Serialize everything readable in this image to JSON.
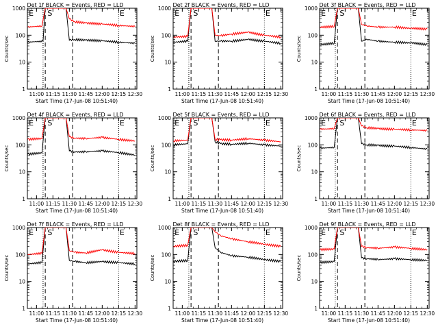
{
  "figure": {
    "title_suffix": "BLACK = Events, RED = LLD",
    "xlabel": "Start Time (17-Jun-08 10:51:40)",
    "ylabel": "Counts/sec",
    "x_ticks": [
      "11:00",
      "11:15",
      "11:30",
      "11:45",
      "12:00",
      "12:15",
      "12:30"
    ],
    "y_ticks": [
      "1",
      "10",
      "100",
      "1000"
    ],
    "markers": {
      "start": "E",
      "saa": "S",
      "end": "E"
    },
    "colors": {
      "events": "#000000",
      "lld": "#ff0000",
      "axes": "#000000"
    }
  },
  "chart_data": [
    {
      "type": "line",
      "title": "Det 1f BLACK = Events, RED = LLD",
      "xlabel": "Start Time (17-Jun-08 10:51:40)",
      "ylabel": "Counts/sec",
      "yscale": "log",
      "ylim": [
        1,
        1000
      ],
      "x_range": [
        "10:51:40",
        "12:31:40"
      ],
      "x_ticks": [
        "11:00",
        "11:15",
        "11:30",
        "11:45",
        "12:00",
        "12:15",
        "12:30"
      ],
      "dotted_lines": [
        "11:06",
        "12:15"
      ],
      "dashed_lines": [
        "11:08",
        "11:33"
      ],
      "labels": [
        {
          "text": "E",
          "x": "10:53"
        },
        {
          "text": "S",
          "x": "11:10"
        },
        {
          "text": "E",
          "x": "12:16"
        }
      ],
      "series": [
        {
          "name": "Events",
          "x": [
            "10:52",
            "11:06",
            "11:08",
            "11:15",
            "11:27",
            "11:30",
            "11:35",
            "11:45",
            "12:00",
            "12:15",
            "12:30"
          ],
          "y": [
            55,
            60,
            1000,
            1000,
            1000,
            65,
            70,
            65,
            62,
            55,
            50
          ]
        },
        {
          "name": "LLD",
          "x": [
            "10:52",
            "11:05",
            "11:08",
            "11:15",
            "11:27",
            "11:30",
            "11:35",
            "11:45",
            "12:00",
            "12:15",
            "12:30"
          ],
          "y": [
            200,
            220,
            1000,
            1000,
            1000,
            400,
            320,
            280,
            260,
            230,
            210
          ]
        }
      ]
    },
    {
      "type": "line",
      "title": "Det 2f BLACK = Events, RED = LLD",
      "xlabel": "Start Time (17-Jun-08 10:51:40)",
      "ylabel": "Counts/sec",
      "yscale": "log",
      "ylim": [
        1,
        1000
      ],
      "x_range": [
        "10:51:40",
        "12:31:40"
      ],
      "x_ticks": [
        "11:00",
        "11:15",
        "11:30",
        "11:45",
        "12:00",
        "12:15",
        "12:30"
      ],
      "dotted_lines": [
        "11:06",
        "12:15"
      ],
      "dashed_lines": [
        "11:08",
        "11:33"
      ],
      "labels": [
        {
          "text": "E",
          "x": "10:53"
        },
        {
          "text": "S",
          "x": "11:10"
        },
        {
          "text": "E",
          "x": "12:16"
        }
      ],
      "series": [
        {
          "name": "Events",
          "x": [
            "10:52",
            "11:05",
            "11:08",
            "11:15",
            "11:27",
            "11:30",
            "11:35",
            "11:45",
            "12:00",
            "12:15",
            "12:30"
          ],
          "y": [
            55,
            60,
            1000,
            1000,
            1000,
            60,
            60,
            60,
            70,
            60,
            50
          ]
        },
        {
          "name": "LLD",
          "x": [
            "10:52",
            "11:05",
            "11:08",
            "11:15",
            "11:27",
            "11:30",
            "11:35",
            "11:45",
            "12:00",
            "12:15",
            "12:30"
          ],
          "y": [
            85,
            90,
            1000,
            1000,
            1000,
            100,
            95,
            110,
            130,
            100,
            85
          ]
        }
      ]
    },
    {
      "type": "line",
      "title": "Det 3f BLACK = Events, RED = LLD",
      "xlabel": "Start Time (17-Jun-08 10:51:40)",
      "ylabel": "Counts/sec",
      "yscale": "log",
      "ylim": [
        1,
        1000
      ],
      "x_range": [
        "10:51:40",
        "12:31:40"
      ],
      "x_ticks": [
        "11:00",
        "11:15",
        "11:30",
        "11:45",
        "12:00",
        "12:15",
        "12:30"
      ],
      "dotted_lines": [
        "11:06",
        "12:15"
      ],
      "dashed_lines": [
        "11:08",
        "11:33"
      ],
      "labels": [
        {
          "text": "E",
          "x": "10:53"
        },
        {
          "text": "S",
          "x": "11:10"
        },
        {
          "text": "E",
          "x": "12:16"
        }
      ],
      "series": [
        {
          "name": "Events",
          "x": [
            "10:52",
            "11:05",
            "11:08",
            "11:15",
            "11:27",
            "11:30",
            "11:35",
            "11:45",
            "12:00",
            "12:15",
            "12:30"
          ],
          "y": [
            45,
            50,
            1000,
            1000,
            1000,
            60,
            70,
            60,
            55,
            52,
            45
          ]
        },
        {
          "name": "LLD",
          "x": [
            "10:52",
            "11:05",
            "11:08",
            "11:15",
            "11:27",
            "11:30",
            "11:35",
            "11:45",
            "12:00",
            "12:15",
            "12:30"
          ],
          "y": [
            200,
            210,
            1000,
            1000,
            1000,
            250,
            220,
            200,
            200,
            180,
            170
          ]
        }
      ]
    },
    {
      "type": "line",
      "title": "Det 4f BLACK = Events, RED = LLD",
      "xlabel": "Start Time (17-Jun-08 10:51:40)",
      "ylabel": "Counts/sec",
      "yscale": "log",
      "ylim": [
        1,
        1000
      ],
      "x_range": [
        "10:51:40",
        "12:31:40"
      ],
      "x_ticks": [
        "11:00",
        "11:15",
        "11:30",
        "11:45",
        "12:00",
        "12:15",
        "12:30"
      ],
      "dotted_lines": [
        "11:06",
        "12:15"
      ],
      "dashed_lines": [
        "11:08",
        "11:33"
      ],
      "labels": [
        {
          "text": "E",
          "x": "10:53"
        },
        {
          "text": "S",
          "x": "11:10"
        },
        {
          "text": "E",
          "x": "12:16"
        }
      ],
      "series": [
        {
          "name": "Events",
          "x": [
            "10:52",
            "11:05",
            "11:08",
            "11:15",
            "11:27",
            "11:30",
            "11:35",
            "11:45",
            "12:00",
            "12:15",
            "12:30"
          ],
          "y": [
            45,
            50,
            1000,
            1000,
            1000,
            60,
            55,
            55,
            60,
            52,
            42
          ]
        },
        {
          "name": "LLD",
          "x": [
            "10:52",
            "11:05",
            "11:08",
            "11:15",
            "11:27",
            "11:30",
            "11:35",
            "11:45",
            "12:00",
            "12:15",
            "12:30"
          ],
          "y": [
            160,
            170,
            1000,
            1000,
            1000,
            200,
            180,
            170,
            190,
            160,
            140
          ]
        }
      ]
    },
    {
      "type": "line",
      "title": "Det 5f BLACK = Events, RED = LLD",
      "xlabel": "Start Time (17-Jun-08 10:51:40)",
      "ylabel": "Counts/sec",
      "yscale": "log",
      "ylim": [
        1,
        1000
      ],
      "x_range": [
        "10:51:40",
        "12:31:40"
      ],
      "x_ticks": [
        "11:00",
        "11:15",
        "11:30",
        "11:45",
        "12:00",
        "12:15",
        "12:30"
      ],
      "dotted_lines": [
        "11:06",
        "12:15"
      ],
      "dashed_lines": [
        "11:08",
        "11:33"
      ],
      "labels": [
        {
          "text": "E",
          "x": "10:53"
        },
        {
          "text": "S",
          "x": "11:10"
        },
        {
          "text": "E",
          "x": "12:16"
        }
      ],
      "series": [
        {
          "name": "Events",
          "x": [
            "10:52",
            "11:05",
            "11:08",
            "11:15",
            "11:27",
            "11:30",
            "11:35",
            "11:45",
            "12:00",
            "12:15",
            "12:30"
          ],
          "y": [
            100,
            110,
            1000,
            1000,
            1000,
            130,
            110,
            105,
            115,
            100,
            90
          ]
        },
        {
          "name": "LLD",
          "x": [
            "10:52",
            "11:05",
            "11:08",
            "11:15",
            "11:27",
            "11:30",
            "11:35",
            "11:45",
            "12:00",
            "12:15",
            "12:30"
          ],
          "y": [
            140,
            150,
            1000,
            1000,
            1000,
            160,
            155,
            150,
            170,
            150,
            130
          ]
        }
      ]
    },
    {
      "type": "line",
      "title": "Det 6f BLACK = Events, RED = LLD",
      "xlabel": "Start Time (17-Jun-08 10:51:40)",
      "ylabel": "Counts/sec",
      "yscale": "log",
      "ylim": [
        1,
        1000
      ],
      "x_range": [
        "10:51:40",
        "12:31:40"
      ],
      "x_ticks": [
        "11:00",
        "11:15",
        "11:30",
        "11:45",
        "12:00",
        "12:15",
        "12:30"
      ],
      "dotted_lines": [
        "11:06",
        "12:15"
      ],
      "dashed_lines": [
        "11:08",
        "11:33"
      ],
      "labels": [
        {
          "text": "E",
          "x": "10:53"
        },
        {
          "text": "S",
          "x": "11:10"
        },
        {
          "text": "E",
          "x": "12:16"
        }
      ],
      "series": [
        {
          "name": "Events",
          "x": [
            "10:52",
            "11:05",
            "11:08",
            "11:15",
            "11:27",
            "11:30",
            "11:35",
            "11:45",
            "12:00",
            "12:15",
            "12:30"
          ],
          "y": [
            75,
            80,
            1000,
            1000,
            1000,
            110,
            100,
            95,
            90,
            80,
            70
          ]
        },
        {
          "name": "LLD",
          "x": [
            "10:52",
            "11:05",
            "11:08",
            "11:15",
            "11:27",
            "11:30",
            "11:35",
            "11:45",
            "12:00",
            "12:15",
            "12:30"
          ],
          "y": [
            380,
            400,
            1000,
            1000,
            1000,
            500,
            430,
            400,
            380,
            360,
            340
          ]
        }
      ]
    },
    {
      "type": "line",
      "title": "Det 7f BLACK = Events, RED = LLD",
      "xlabel": "Start Time (17-Jun-08 10:51:40)",
      "ylabel": "Counts/sec",
      "yscale": "log",
      "ylim": [
        1,
        1000
      ],
      "x_range": [
        "10:51:40",
        "12:31:40"
      ],
      "x_ticks": [
        "11:00",
        "11:15",
        "11:30",
        "11:45",
        "12:00",
        "12:15",
        "12:30"
      ],
      "dotted_lines": [
        "11:06",
        "12:15"
      ],
      "dashed_lines": [
        "11:08",
        "11:33"
      ],
      "labels": [
        {
          "text": "E",
          "x": "10:53"
        },
        {
          "text": "S",
          "x": "11:10"
        },
        {
          "text": "E",
          "x": "12:16"
        }
      ],
      "series": [
        {
          "name": "Events",
          "x": [
            "10:52",
            "11:05",
            "11:08",
            "11:15",
            "11:27",
            "11:30",
            "11:35",
            "11:45",
            "12:00",
            "12:15",
            "12:30"
          ],
          "y": [
            45,
            50,
            1000,
            1000,
            1000,
            60,
            55,
            50,
            55,
            50,
            45
          ]
        },
        {
          "name": "LLD",
          "x": [
            "10:52",
            "11:05",
            "11:08",
            "11:15",
            "11:27",
            "11:30",
            "11:35",
            "11:45",
            "12:00",
            "12:15",
            "12:30"
          ],
          "y": [
            100,
            110,
            1000,
            1000,
            1000,
            140,
            120,
            115,
            150,
            120,
            110
          ]
        }
      ]
    },
    {
      "type": "line",
      "title": "Det 8f BLACK = Events, RED = LLD",
      "xlabel": "Start Time (17-Jun-08 10:51:40)",
      "ylabel": "Counts/sec",
      "yscale": "log",
      "ylim": [
        1,
        1000
      ],
      "x_range": [
        "10:51:40",
        "12:31:40"
      ],
      "x_ticks": [
        "11:00",
        "11:15",
        "11:30",
        "11:45",
        "12:00",
        "12:15",
        "12:30"
      ],
      "dotted_lines": [
        "11:06",
        "12:15"
      ],
      "dashed_lines": [
        "11:08",
        "11:33"
      ],
      "labels": [
        {
          "text": "E",
          "x": "10:53"
        },
        {
          "text": "S",
          "x": "11:10"
        },
        {
          "text": "E",
          "x": "12:16"
        }
      ],
      "series": [
        {
          "name": "Events",
          "x": [
            "10:52",
            "11:05",
            "11:08",
            "11:15",
            "11:27",
            "11:30",
            "11:35",
            "11:45",
            "12:00",
            "12:15",
            "12:30"
          ],
          "y": [
            55,
            60,
            1000,
            1000,
            1000,
            180,
            120,
            90,
            80,
            65,
            55
          ]
        },
        {
          "name": "LLD",
          "x": [
            "10:52",
            "11:05",
            "11:08",
            "11:15",
            "11:27",
            "11:30",
            "11:35",
            "11:45",
            "12:00",
            "12:15",
            "12:30"
          ],
          "y": [
            200,
            220,
            1000,
            1000,
            1000,
            700,
            500,
            380,
            300,
            240,
            200
          ]
        }
      ]
    },
    {
      "type": "line",
      "title": "Det 9f BLACK = Events, RED = LLD",
      "xlabel": "Start Time (17-Jun-08 10:51:40)",
      "ylabel": "Counts/sec",
      "yscale": "log",
      "ylim": [
        1,
        1000
      ],
      "x_range": [
        "10:51:40",
        "12:31:40"
      ],
      "x_ticks": [
        "11:00",
        "11:15",
        "11:30",
        "11:45",
        "12:00",
        "12:15",
        "12:30"
      ],
      "dotted_lines": [
        "11:06",
        "12:15"
      ],
      "dashed_lines": [
        "11:08",
        "11:33"
      ],
      "labels": [
        {
          "text": "E",
          "x": "10:53"
        },
        {
          "text": "S",
          "x": "11:10"
        },
        {
          "text": "E",
          "x": "12:16"
        }
      ],
      "series": [
        {
          "name": "Events",
          "x": [
            "10:52",
            "11:05",
            "11:08",
            "11:15",
            "11:27",
            "11:30",
            "11:35",
            "11:45",
            "12:00",
            "12:15",
            "12:30"
          ],
          "y": [
            50,
            55,
            1000,
            1000,
            1000,
            75,
            70,
            65,
            70,
            65,
            60
          ]
        },
        {
          "name": "LLD",
          "x": [
            "10:52",
            "11:05",
            "11:08",
            "11:15",
            "11:27",
            "11:30",
            "11:35",
            "11:45",
            "12:00",
            "12:15",
            "12:30"
          ],
          "y": [
            150,
            160,
            1000,
            1000,
            1000,
            200,
            180,
            170,
            190,
            170,
            150
          ]
        }
      ]
    }
  ]
}
